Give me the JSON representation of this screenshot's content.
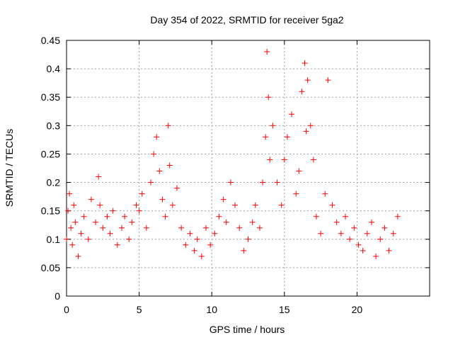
{
  "chart_data": {
    "type": "scatter",
    "title": "Day 354 of 2022, SRMTID for receiver 5ga2",
    "xlabel": "GPS time / hours",
    "ylabel": "SRMTID / TECUs",
    "xlim": [
      0,
      25
    ],
    "ylim": [
      0,
      0.45
    ],
    "grid": true,
    "x_ticks": [
      0,
      5,
      10,
      15,
      20
    ],
    "x_tick_labels": [
      "0",
      "5",
      "10",
      "15",
      "20"
    ],
    "y_ticks": [
      0,
      0.05,
      0.1,
      0.15,
      0.2,
      0.25,
      0.3,
      0.35,
      0.4,
      0.45
    ],
    "y_tick_labels": [
      "0",
      "0.05",
      "0.1",
      "0.15",
      "0.2",
      "0.25",
      "0.3",
      "0.35",
      "0.4",
      "0.45"
    ],
    "marker": "+",
    "marker_color": "#ff0000",
    "series": [
      {
        "name": "SRMTID",
        "x": [
          0.0,
          0.1,
          0.2,
          0.3,
          0.4,
          0.5,
          0.6,
          0.8,
          1.0,
          1.2,
          1.5,
          1.7,
          2.0,
          2.2,
          2.3,
          2.5,
          2.8,
          3.0,
          3.2,
          3.5,
          3.8,
          4.0,
          4.3,
          4.5,
          4.8,
          5.0,
          5.2,
          5.5,
          5.8,
          6.0,
          6.2,
          6.4,
          6.6,
          6.8,
          7.0,
          7.1,
          7.3,
          7.6,
          7.9,
          8.2,
          8.5,
          8.8,
          9.0,
          9.3,
          9.6,
          9.9,
          10.2,
          10.5,
          10.8,
          11.0,
          11.3,
          11.6,
          11.9,
          12.2,
          12.5,
          12.8,
          13.0,
          13.3,
          13.5,
          13.7,
          13.8,
          13.9,
          14.0,
          14.2,
          14.5,
          14.8,
          15.0,
          15.2,
          15.5,
          15.8,
          16.0,
          16.2,
          16.4,
          16.5,
          16.6,
          16.8,
          17.0,
          17.2,
          17.5,
          17.8,
          18.0,
          18.3,
          18.6,
          18.9,
          19.2,
          19.5,
          19.8,
          20.1,
          20.4,
          20.7,
          21.0,
          21.3,
          21.6,
          21.9,
          22.2,
          22.5,
          22.8
        ],
        "y": [
          0.1,
          0.15,
          0.18,
          0.12,
          0.09,
          0.16,
          0.13,
          0.07,
          0.11,
          0.14,
          0.1,
          0.17,
          0.13,
          0.21,
          0.16,
          0.12,
          0.14,
          0.11,
          0.15,
          0.09,
          0.12,
          0.14,
          0.1,
          0.13,
          0.16,
          0.15,
          0.18,
          0.12,
          0.2,
          0.25,
          0.28,
          0.22,
          0.17,
          0.14,
          0.3,
          0.23,
          0.16,
          0.19,
          0.12,
          0.09,
          0.11,
          0.08,
          0.1,
          0.07,
          0.12,
          0.09,
          0.11,
          0.14,
          0.17,
          0.13,
          0.2,
          0.16,
          0.12,
          0.08,
          0.1,
          0.13,
          0.16,
          0.12,
          0.2,
          0.28,
          0.43,
          0.35,
          0.24,
          0.3,
          0.2,
          0.16,
          0.24,
          0.28,
          0.32,
          0.18,
          0.22,
          0.36,
          0.41,
          0.29,
          0.38,
          0.3,
          0.24,
          0.14,
          0.11,
          0.18,
          0.38,
          0.16,
          0.13,
          0.11,
          0.14,
          0.1,
          0.12,
          0.09,
          0.08,
          0.11,
          0.13,
          0.07,
          0.1,
          0.12,
          0.08,
          0.11,
          0.14
        ]
      }
    ]
  }
}
